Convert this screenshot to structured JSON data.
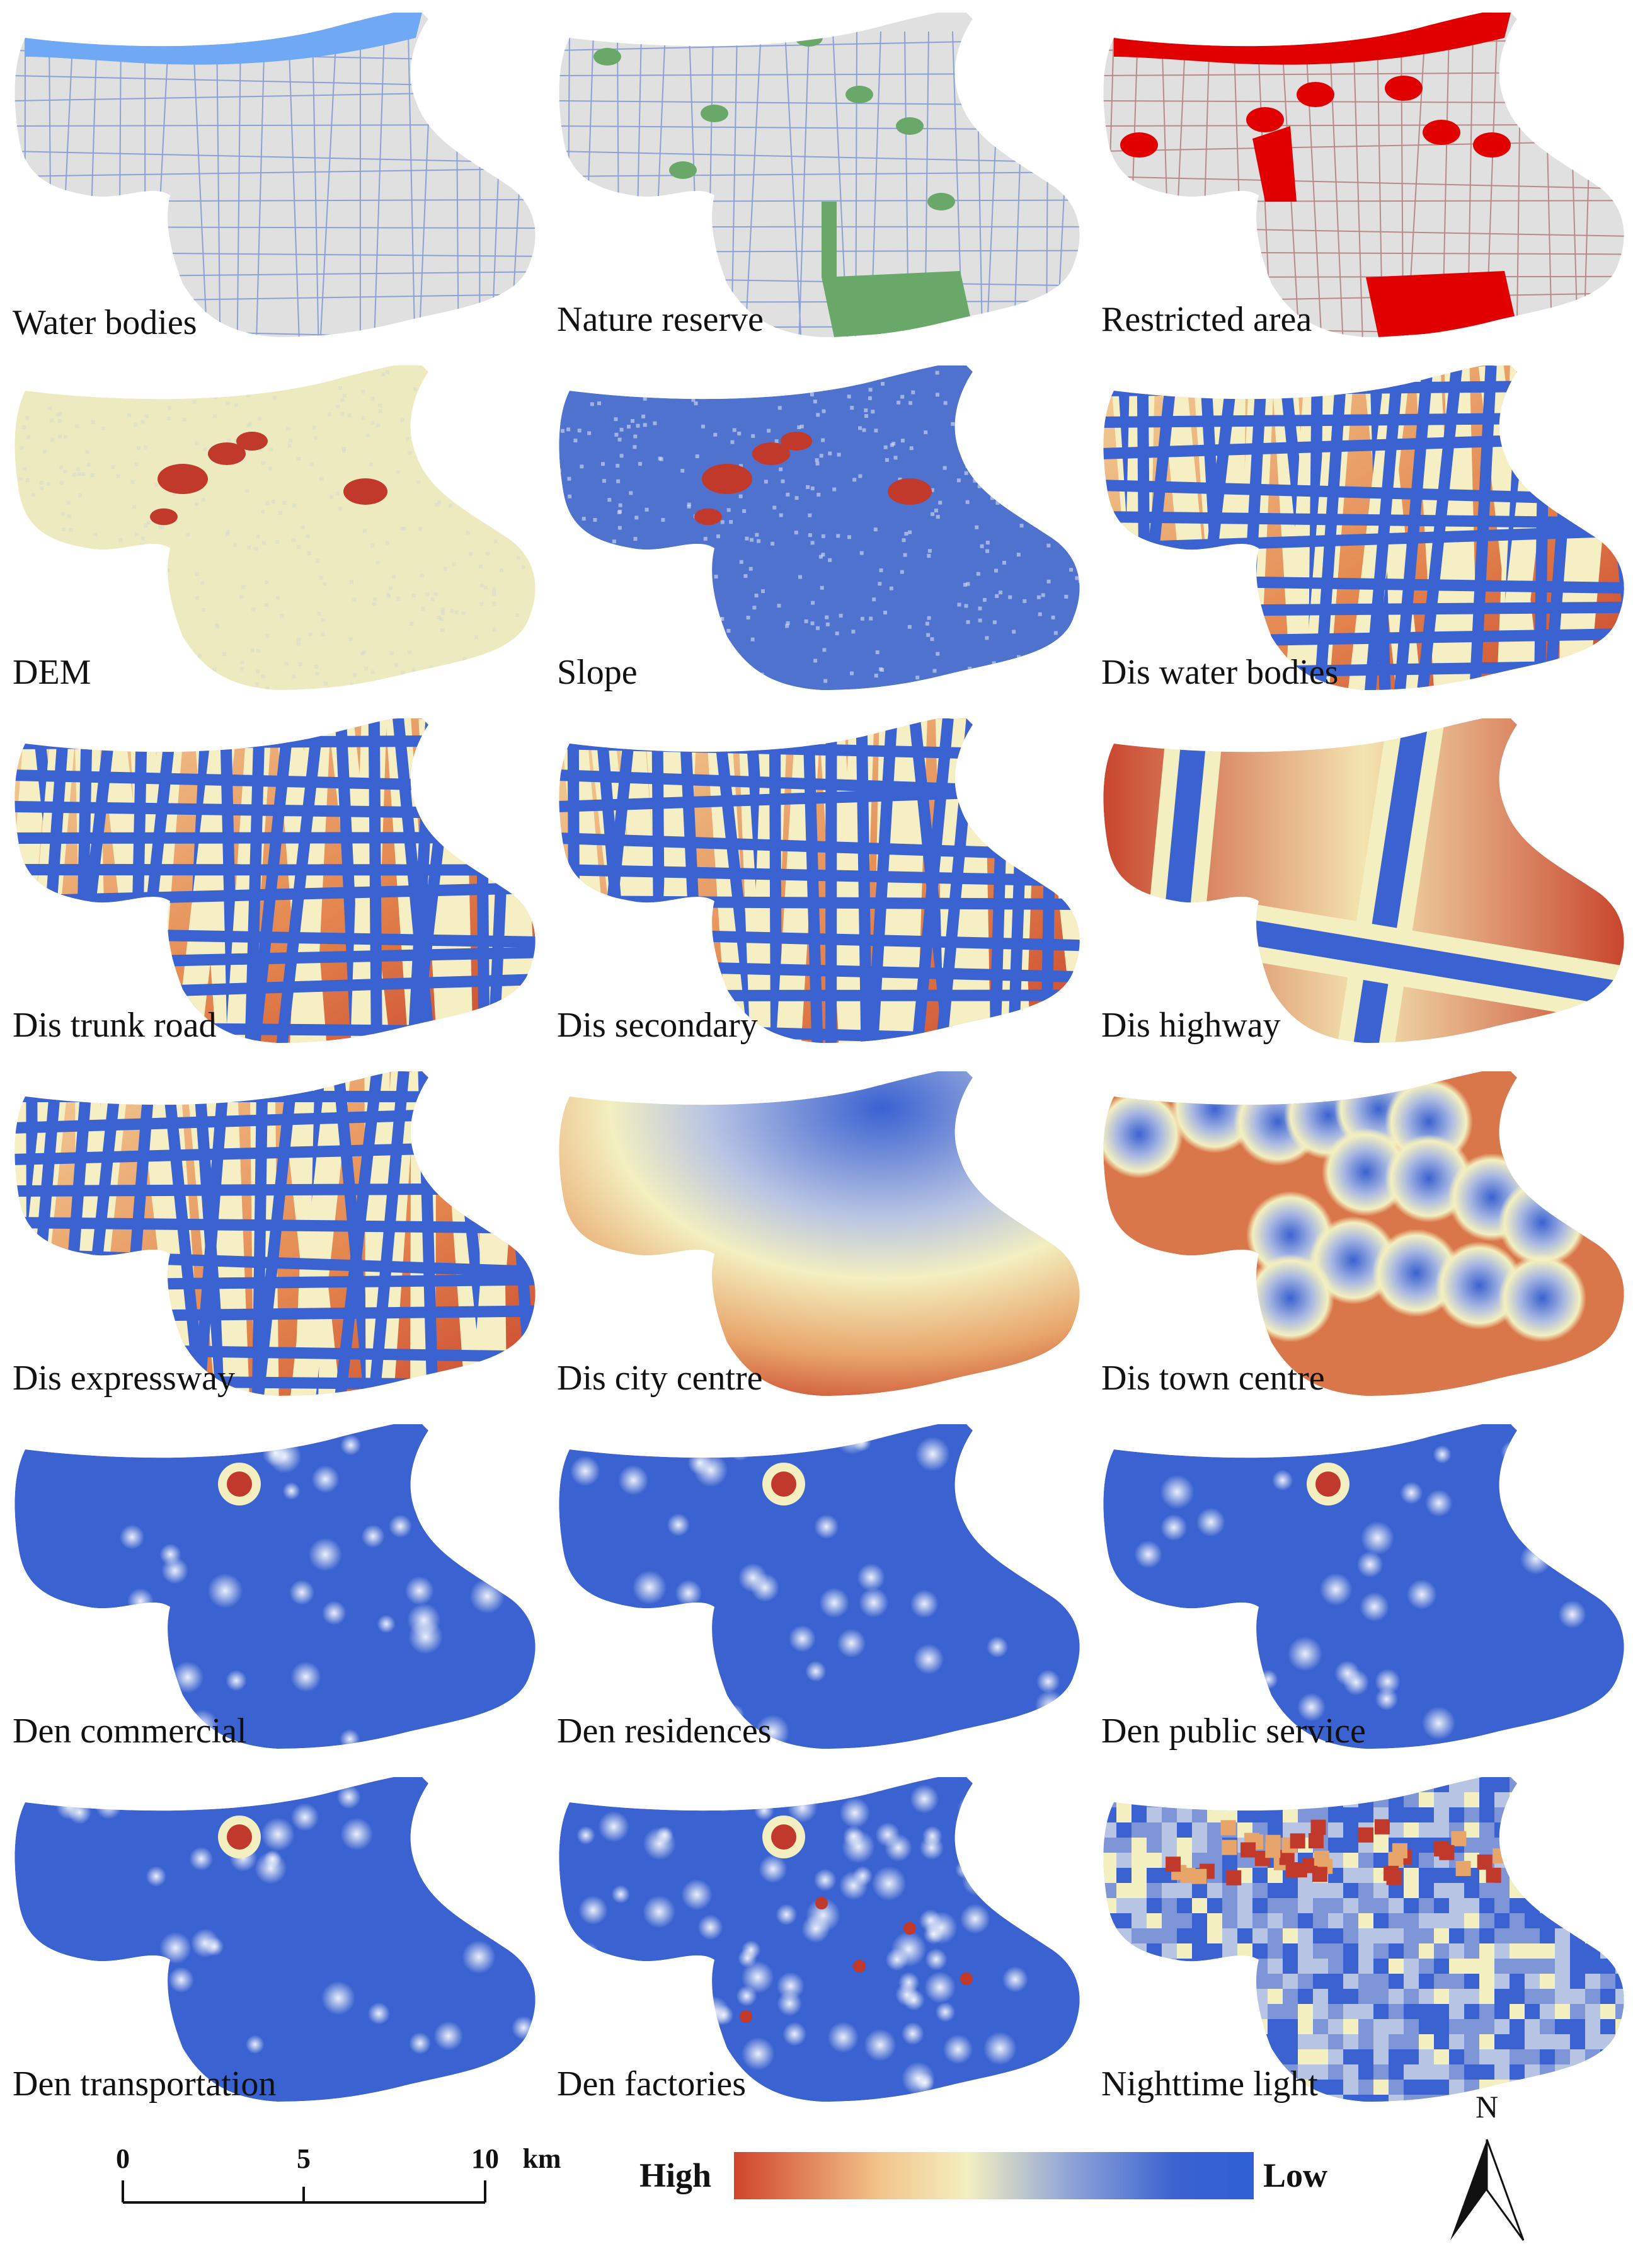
{
  "panels": [
    {
      "label": "Water bodies",
      "style": "water_bodies"
    },
    {
      "label": "Nature reserve",
      "style": "nature_reserve"
    },
    {
      "label": "Restricted area",
      "style": "restricted_area"
    },
    {
      "label": "DEM",
      "style": "dem"
    },
    {
      "label": "Slope",
      "style": "slope"
    },
    {
      "label": "Dis water bodies",
      "style": "dis_network"
    },
    {
      "label": "Dis trunk road",
      "style": "dis_network"
    },
    {
      "label": "Dis secondary",
      "style": "dis_network"
    },
    {
      "label": "Dis highway",
      "style": "dis_highway"
    },
    {
      "label": "Dis expressway",
      "style": "dis_network"
    },
    {
      "label": "Dis city centre",
      "style": "dis_city"
    },
    {
      "label": "Dis town centre",
      "style": "dis_town"
    },
    {
      "label": "Den commercial",
      "style": "density"
    },
    {
      "label": "Den residences",
      "style": "density"
    },
    {
      "label": "Den public service",
      "style": "density"
    },
    {
      "label": "Den transportation",
      "style": "density"
    },
    {
      "label": "Den factories",
      "style": "density_high"
    },
    {
      "label": "Nighttime light",
      "style": "nightlight"
    }
  ],
  "scale_bar": {
    "ticks": [
      "0",
      "5",
      "10"
    ],
    "unit": "km"
  },
  "legend": {
    "high_label": "High",
    "low_label": "Low",
    "colors": [
      "#d0442c",
      "#f2c48a",
      "#f3efc0",
      "#8da3d8",
      "#3a62d0",
      "#2f5fd6"
    ]
  },
  "north_arrow": {
    "label": "N"
  },
  "colors": {
    "water": "#6fa8f5",
    "reserve": "#6aa86a",
    "restricted": "#e00000",
    "land": "#e0e0e0",
    "road_lines": "#8aa2d6",
    "high": "#c0392b",
    "low": "#3a62d0",
    "mid": "#f4efbf"
  }
}
